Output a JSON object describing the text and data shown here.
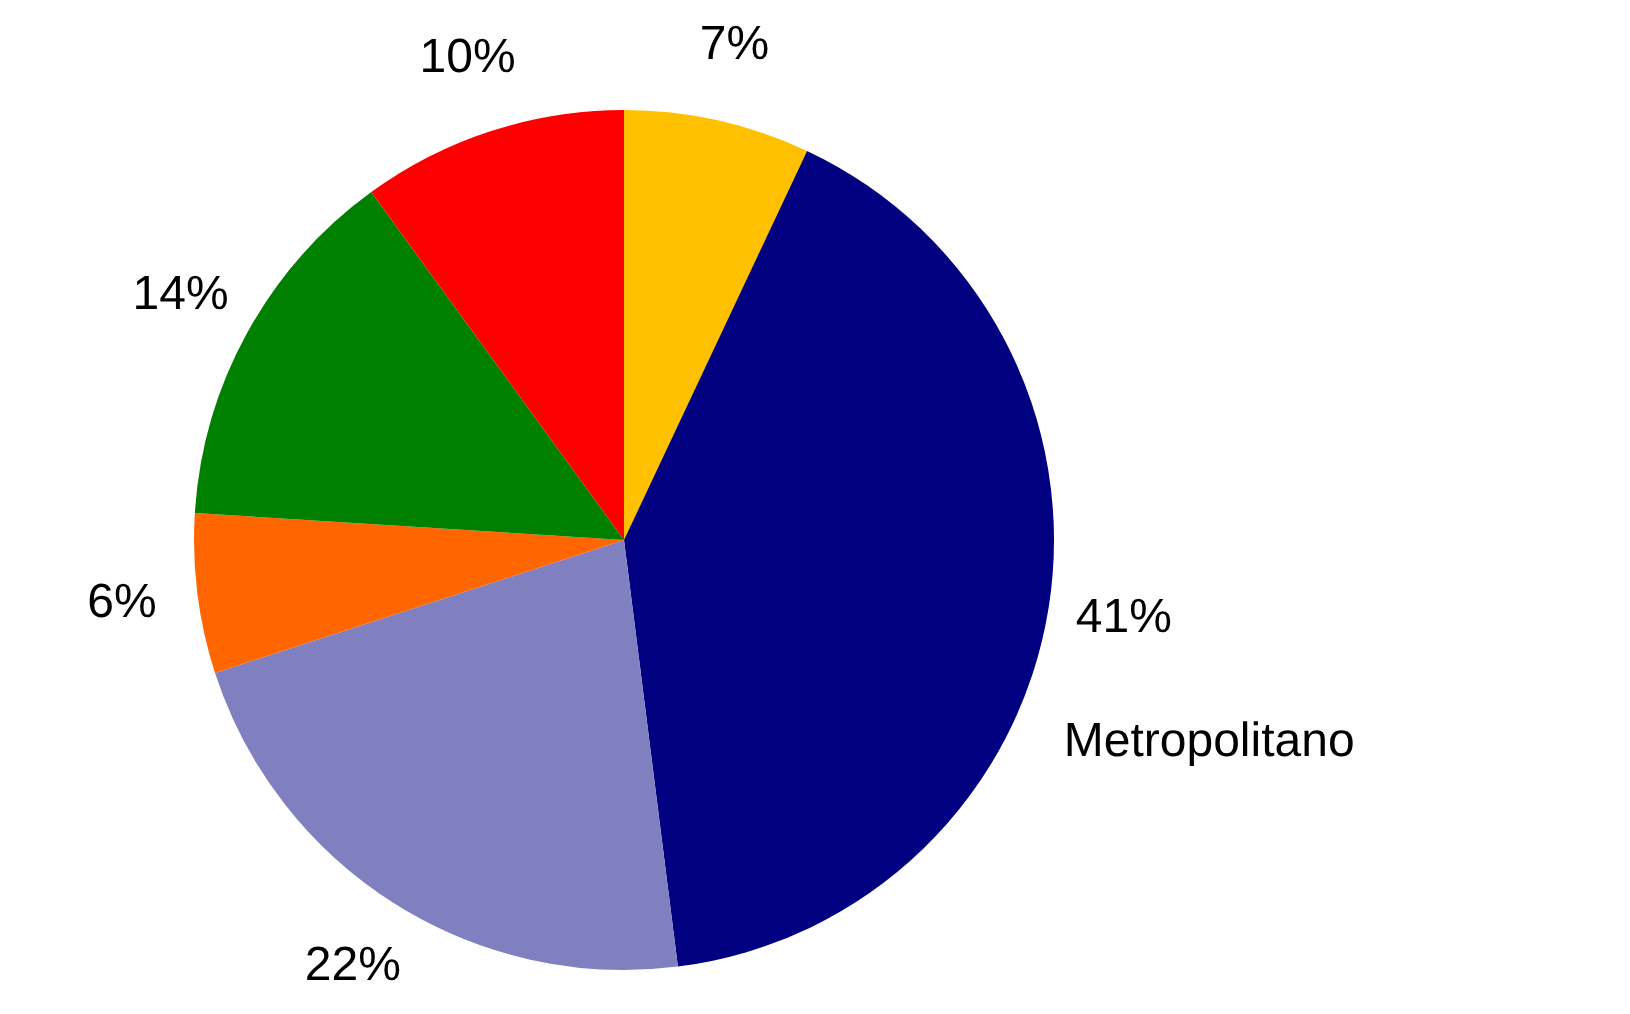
{
  "chart_data": {
    "type": "pie",
    "categories": [
      null,
      "Metropolitano",
      null,
      null,
      null,
      null
    ],
    "values": [
      7,
      41,
      22,
      6,
      14,
      10
    ],
    "colors": [
      "#ffc000",
      "#000080",
      "#8080c0",
      "#ff6600",
      "#008000",
      "#ff0000"
    ],
    "value_labels": [
      "7%",
      "41%",
      "22%",
      "6%",
      "14%",
      "10%"
    ],
    "legend": false
  }
}
